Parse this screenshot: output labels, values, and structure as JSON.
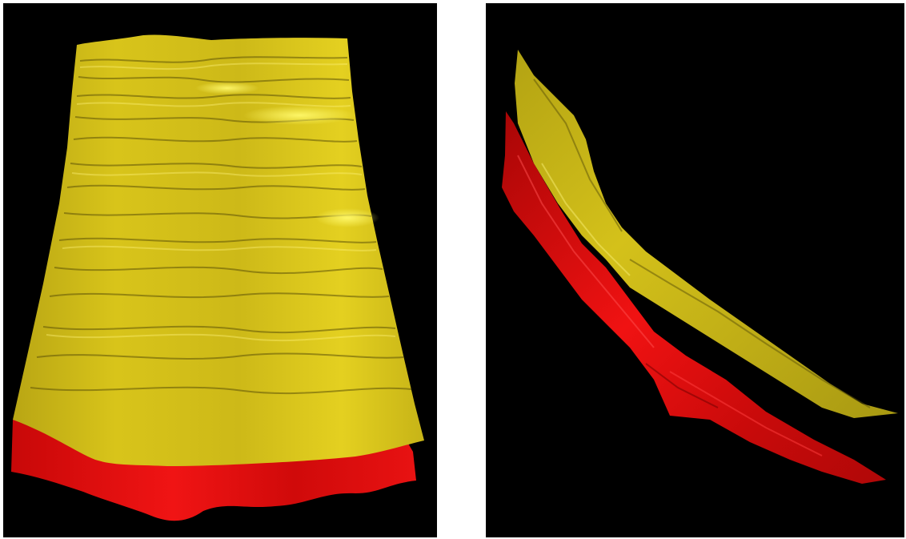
{
  "figure": {
    "panels": [
      {
        "view": "front",
        "surfaces": [
          {
            "layer": "upper",
            "color": "#e6d21c"
          },
          {
            "layer": "lower",
            "color": "#e81010"
          }
        ]
      },
      {
        "view": "side",
        "surfaces": [
          {
            "layer": "upper",
            "color": "#e6d21c"
          },
          {
            "layer": "lower",
            "color": "#e81010"
          }
        ]
      }
    ],
    "background_color": "#000000"
  }
}
